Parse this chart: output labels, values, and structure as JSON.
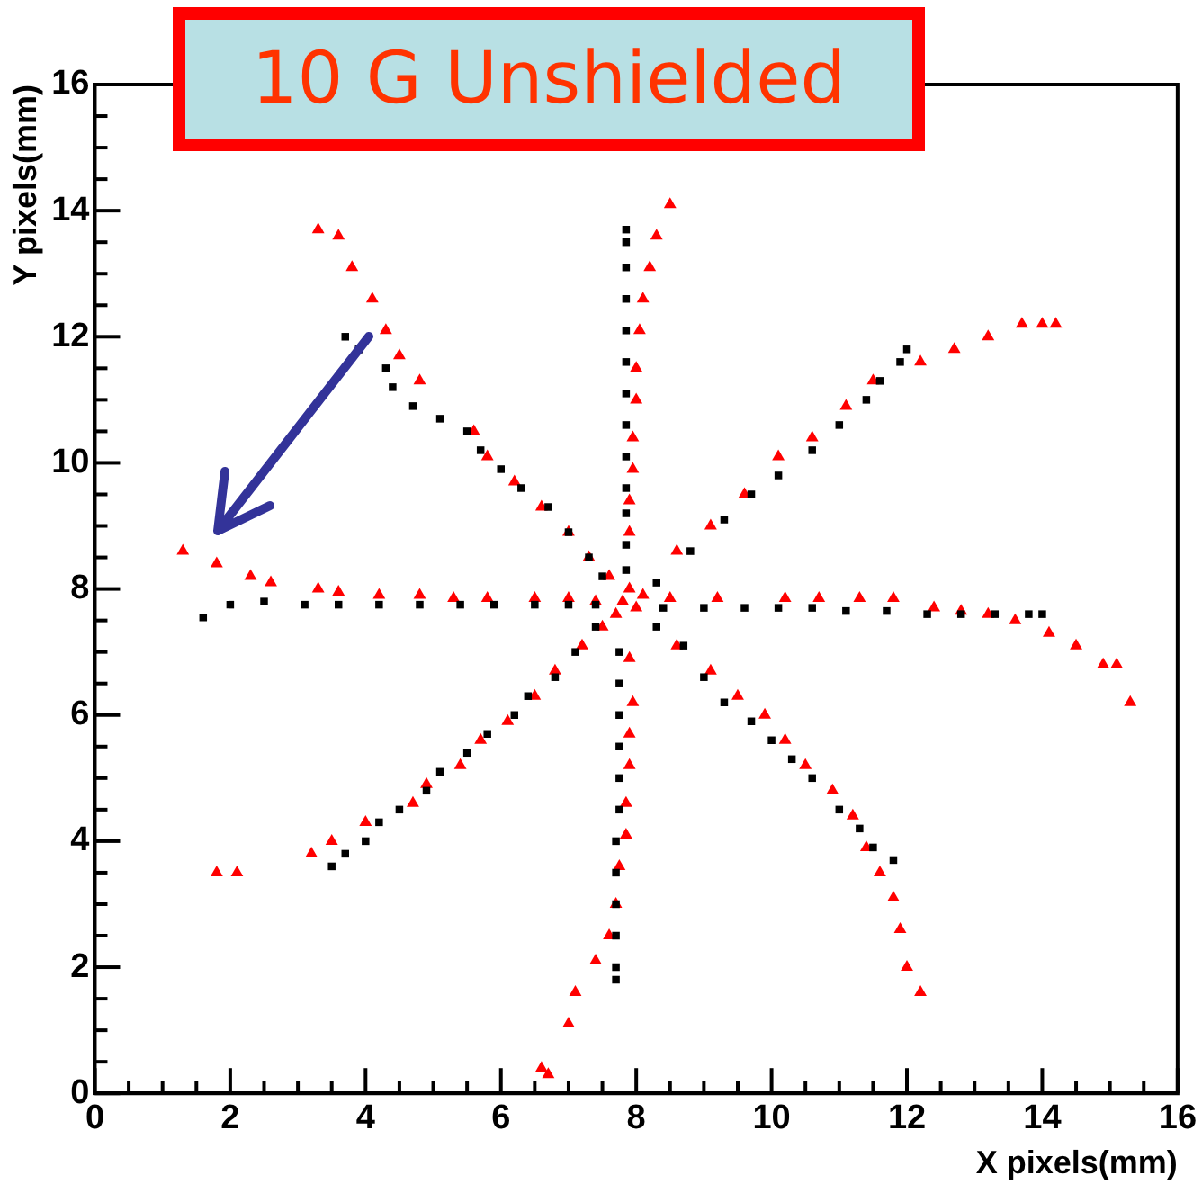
{
  "chart_data": {
    "type": "scatter",
    "title": "10 G Unshielded",
    "xlabel": "X pixels(mm)",
    "ylabel": "Y pixels(mm)",
    "xlim": [
      0,
      16
    ],
    "ylim": [
      0,
      16
    ],
    "xticks": [
      0,
      {
        "value": 0.5,
        "label": null
      },
      {
        "value": 1,
        "label": null
      },
      {
        "value": 1.5,
        "label": null
      },
      2,
      {
        "value": 2.5,
        "label": null
      },
      {
        "value": 3,
        "label": null
      },
      {
        "value": 3.5,
        "label": null
      },
      4,
      {
        "value": 4.5,
        "label": null
      },
      {
        "value": 5,
        "label": null
      },
      {
        "value": 5.5,
        "label": null
      },
      6,
      {
        "value": 6.5,
        "label": null
      },
      {
        "value": 7,
        "label": null
      },
      {
        "value": 7.5,
        "label": null
      },
      8,
      {
        "value": 8.5,
        "label": null
      },
      {
        "value": 9,
        "label": null
      },
      {
        "value": 9.5,
        "label": null
      },
      10,
      {
        "value": 10.5,
        "label": null
      },
      {
        "value": 11,
        "label": null
      },
      {
        "value": 11.5,
        "label": null
      },
      12,
      {
        "value": 12.5,
        "label": null
      },
      {
        "value": 13,
        "label": null
      },
      {
        "value": 13.5,
        "label": null
      },
      14,
      {
        "value": 14.5,
        "label": null
      },
      {
        "value": 15,
        "label": null
      },
      {
        "value": 15.5,
        "label": null
      },
      16
    ],
    "yticks": [
      0,
      {
        "value": 0.5,
        "label": null
      },
      {
        "value": 1,
        "label": null
      },
      {
        "value": 1.5,
        "label": null
      },
      2,
      {
        "value": 2.5,
        "label": null
      },
      {
        "value": 3,
        "label": null
      },
      {
        "value": 3.5,
        "label": null
      },
      4,
      {
        "value": 4.5,
        "label": null
      },
      {
        "value": 5,
        "label": null
      },
      {
        "value": 5.5,
        "label": null
      },
      6,
      {
        "value": 6.5,
        "label": null
      },
      {
        "value": 7,
        "label": null
      },
      {
        "value": 7.5,
        "label": null
      },
      8,
      {
        "value": 8.5,
        "label": null
      },
      {
        "value": 9,
        "label": null
      },
      {
        "value": 9.5,
        "label": null
      },
      10,
      {
        "value": 10.5,
        "label": null
      },
      {
        "value": 11,
        "label": null
      },
      {
        "value": 11.5,
        "label": null
      },
      12,
      {
        "value": 12.5,
        "label": null
      },
      {
        "value": 13,
        "label": null
      },
      {
        "value": 13.5,
        "label": null
      },
      14,
      {
        "value": 14.5,
        "label": null
      },
      {
        "value": 15,
        "label": null
      },
      {
        "value": 15.5,
        "label": null
      },
      16
    ],
    "grid": false,
    "legend": false,
    "series": [
      {
        "color": "#000000",
        "marker": "square",
        "x": [
          7.85,
          7.85,
          7.85,
          7.85,
          7.85,
          7.85,
          7.85,
          7.85,
          7.85,
          7.85,
          7.85,
          7.85,
          7.85,
          7.75,
          7.75,
          7.75,
          7.75,
          7.75,
          7.75,
          7.7,
          7.7,
          7.7,
          7.7,
          7.7,
          7.7,
          1.6,
          2.0,
          2.5,
          3.1,
          3.6,
          4.2,
          4.8,
          5.4,
          5.9,
          6.5,
          7.0,
          7.4,
          8.4,
          9.0,
          9.6,
          10.1,
          10.6,
          11.1,
          11.7,
          12.3,
          12.8,
          13.3,
          13.8,
          14.0,
          3.7,
          3.9,
          4.3,
          4.4,
          4.7,
          5.1,
          5.5,
          5.7,
          6.0,
          6.3,
          6.7,
          7.0,
          7.3,
          7.5,
          8.3,
          8.8,
          9.3,
          9.7,
          10.1,
          10.6,
          11.0,
          11.4,
          11.6,
          11.9,
          12.0,
          3.5,
          3.7,
          4.0,
          4.2,
          4.5,
          4.9,
          5.1,
          5.5,
          5.8,
          6.2,
          6.4,
          6.8,
          7.1,
          7.4,
          8.3,
          8.7,
          9.0,
          9.3,
          9.7,
          10.0,
          10.3,
          10.6,
          11.0,
          11.3,
          11.5,
          11.8
        ],
        "values": [
          8.3,
          8.7,
          9.2,
          9.6,
          10.1,
          10.6,
          11.1,
          11.6,
          12.1,
          12.6,
          13.1,
          13.5,
          13.7,
          7.0,
          6.5,
          6.0,
          5.5,
          5.0,
          4.5,
          4.0,
          3.5,
          3.0,
          2.5,
          2.0,
          1.8,
          7.55,
          7.75,
          7.8,
          7.75,
          7.75,
          7.75,
          7.75,
          7.75,
          7.75,
          7.75,
          7.75,
          7.75,
          7.7,
          7.7,
          7.7,
          7.7,
          7.7,
          7.65,
          7.65,
          7.6,
          7.6,
          7.6,
          7.6,
          7.6,
          12.0,
          11.8,
          11.5,
          11.2,
          10.9,
          10.7,
          10.5,
          10.2,
          9.9,
          9.6,
          9.3,
          8.9,
          8.5,
          8.2,
          8.1,
          8.6,
          9.1,
          9.5,
          9.8,
          10.2,
          10.6,
          11.0,
          11.3,
          11.6,
          11.8,
          3.6,
          3.8,
          4.0,
          4.3,
          4.5,
          4.8,
          5.1,
          5.4,
          5.7,
          6.0,
          6.3,
          6.6,
          7.0,
          7.4,
          7.4,
          7.1,
          6.6,
          6.2,
          5.9,
          5.6,
          5.3,
          5.0,
          4.5,
          4.2,
          3.9,
          3.7
        ]
      },
      {
        "color": "#ff0000",
        "marker": "triangle",
        "x": [
          3.3,
          3.6,
          3.8,
          4.1,
          4.3,
          4.5,
          4.8,
          5.6,
          5.8,
          6.2,
          6.6,
          7.0,
          7.3,
          7.6,
          8.5,
          8.3,
          8.2,
          8.1,
          8.05,
          8.0,
          8.0,
          7.95,
          7.95,
          7.9,
          7.9,
          8.6,
          9.1,
          9.6,
          10.1,
          10.6,
          11.1,
          11.5,
          12.2,
          12.7,
          13.2,
          13.7,
          14.0,
          14.2,
          1.3,
          1.8,
          2.3,
          2.6,
          3.3,
          3.6,
          4.2,
          4.8,
          5.3,
          5.8,
          6.5,
          7.0,
          7.4,
          8.5,
          9.2,
          10.2,
          10.7,
          11.3,
          11.8,
          12.4,
          12.8,
          13.2,
          13.6,
          14.1,
          14.5,
          14.9,
          15.1,
          15.3,
          8.6,
          9.1,
          9.5,
          9.9,
          10.2,
          10.5,
          10.9,
          11.2,
          11.4,
          11.6,
          11.8,
          11.9,
          12.0,
          12.2,
          7.9,
          7.95,
          7.9,
          7.9,
          7.85,
          7.85,
          7.75,
          7.7,
          7.6,
          7.4,
          7.1,
          7.0,
          6.6,
          6.7,
          1.8,
          2.1,
          3.2,
          3.5,
          4.0,
          4.7,
          4.9,
          5.4,
          5.7,
          6.1,
          6.5,
          6.8,
          7.2,
          7.5,
          7.8,
          8.0,
          7.9,
          7.7,
          8.1
        ],
        "values": [
          13.7,
          13.6,
          13.1,
          12.6,
          12.1,
          11.7,
          11.3,
          10.5,
          10.1,
          9.7,
          9.3,
          8.9,
          8.5,
          8.2,
          14.1,
          13.6,
          13.1,
          12.6,
          12.1,
          11.5,
          11.0,
          10.4,
          9.9,
          9.4,
          8.9,
          8.6,
          9.0,
          9.5,
          10.1,
          10.4,
          10.9,
          11.3,
          11.6,
          11.8,
          12.0,
          12.2,
          12.2,
          12.2,
          8.6,
          8.4,
          8.2,
          8.1,
          8.0,
          7.95,
          7.9,
          7.9,
          7.85,
          7.85,
          7.85,
          7.85,
          7.8,
          7.85,
          7.85,
          7.85,
          7.85,
          7.85,
          7.85,
          7.7,
          7.65,
          7.6,
          7.5,
          7.3,
          7.1,
          6.8,
          6.8,
          6.2,
          7.1,
          6.7,
          6.3,
          6.0,
          5.6,
          5.2,
          4.8,
          4.4,
          3.9,
          3.5,
          3.1,
          2.6,
          2.0,
          1.6,
          6.9,
          6.2,
          5.7,
          5.2,
          4.6,
          4.1,
          3.6,
          3.0,
          2.5,
          2.1,
          1.6,
          1.1,
          0.4,
          0.3,
          3.5,
          3.5,
          3.8,
          4.0,
          4.3,
          4.6,
          4.9,
          5.2,
          5.6,
          5.9,
          6.3,
          6.7,
          7.1,
          7.4,
          7.8,
          7.7,
          8.0,
          7.6,
          7.9
        ]
      }
    ]
  }
}
